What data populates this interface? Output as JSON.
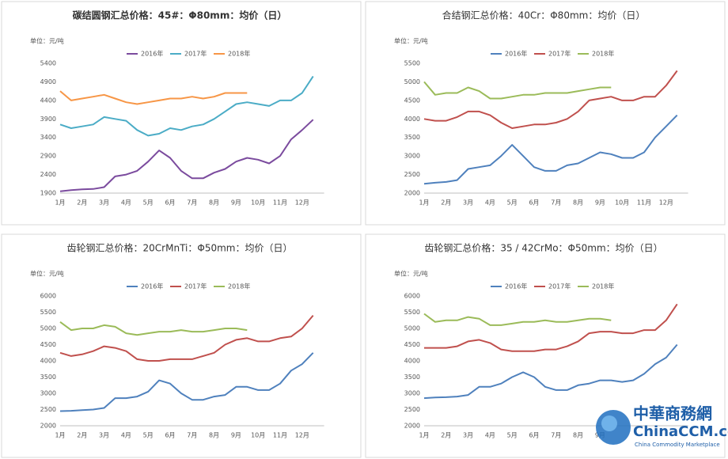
{
  "chart_data": [
    {
      "type": "line",
      "title": "碳结圆钢汇总价格：45#：Φ80mm：均价（日）",
      "unit": "单位：元/吨",
      "categories": [
        "1月",
        null,
        "2月",
        null,
        "3月",
        null,
        "4月",
        null,
        "5月",
        null,
        "6月",
        null,
        "7月",
        null,
        "8月",
        null,
        "9月",
        null,
        "10月",
        null,
        "11月",
        null,
        "12月",
        null
      ],
      "ylim": [
        1900,
        5400
      ],
      "yticks": [
        1900,
        2400,
        2900,
        3400,
        3900,
        4400,
        4900,
        5400
      ],
      "grid": false,
      "series": [
        {
          "name": "2016年",
          "color": "#7b4b9e",
          "values": [
            1950,
            1980,
            2000,
            2010,
            2060,
            2350,
            2400,
            2500,
            2750,
            3050,
            2850,
            2500,
            2300,
            2300,
            2450,
            2550,
            2750,
            2850,
            2800,
            2700,
            2900,
            3350,
            3600,
            3880
          ]
        },
        {
          "name": "2017年",
          "color": "#4bacc6",
          "values": [
            3750,
            3650,
            3700,
            3750,
            3950,
            3900,
            3850,
            3600,
            3450,
            3500,
            3650,
            3600,
            3700,
            3750,
            3900,
            4100,
            4300,
            4350,
            4300,
            4250,
            4400,
            4400,
            4600,
            5050
          ]
        },
        {
          "name": "2018年",
          "color": "#f79646",
          "values": [
            4650,
            4400,
            4450,
            4500,
            4550,
            4450,
            4350,
            4300,
            4350,
            4400,
            4450,
            4450,
            4500,
            4450,
            4500,
            4600,
            4600,
            4600,
            null,
            null,
            null,
            null,
            null,
            null
          ]
        }
      ]
    },
    {
      "type": "line",
      "title": "合结钢汇总价格：40Cr：Φ80mm：均价（日）",
      "unit": "单位：元/吨",
      "categories": [
        "1月",
        null,
        "2月",
        null,
        "3月",
        null,
        "4月",
        null,
        "5月",
        null,
        "6月",
        null,
        "7月",
        null,
        "8月",
        null,
        "9月",
        null,
        "10月",
        null,
        "11月",
        null,
        "12月",
        null
      ],
      "ylim": [
        2000,
        5500
      ],
      "yticks": [
        2000,
        2500,
        3000,
        3500,
        4000,
        4500,
        5000,
        5500
      ],
      "grid": false,
      "series": [
        {
          "name": "2016年",
          "color": "#4f81bd",
          "values": [
            2250,
            2280,
            2300,
            2350,
            2650,
            2700,
            2750,
            3000,
            3300,
            3000,
            2700,
            2600,
            2600,
            2750,
            2800,
            2950,
            3100,
            3050,
            2950,
            2950,
            3100,
            3500,
            3800,
            4100
          ]
        },
        {
          "name": "2017年",
          "color": "#c0504d",
          "values": [
            4000,
            3950,
            3950,
            4050,
            4200,
            4200,
            4100,
            3900,
            3750,
            3800,
            3850,
            3850,
            3900,
            4000,
            4200,
            4500,
            4550,
            4600,
            4500,
            4500,
            4600,
            4600,
            4900,
            5300
          ]
        },
        {
          "name": "2018年",
          "color": "#9bbb59",
          "values": [
            5000,
            4650,
            4700,
            4700,
            4850,
            4750,
            4550,
            4550,
            4600,
            4650,
            4650,
            4700,
            4700,
            4700,
            4750,
            4800,
            4850,
            4850,
            null,
            null,
            null,
            null,
            null,
            null
          ]
        }
      ]
    },
    {
      "type": "line",
      "title": "齿轮钢汇总价格：20CrMnTi：Φ50mm：均价（日）",
      "unit": "单位：元/吨",
      "categories": [
        "1月",
        null,
        "2月",
        null,
        "3月",
        null,
        "4月",
        null,
        "5月",
        null,
        "6月",
        null,
        "7月",
        null,
        "8月",
        null,
        "9月",
        null,
        "10月",
        null,
        "11月",
        null,
        "12月",
        null
      ],
      "ylim": [
        2000,
        6000
      ],
      "yticks": [
        2000,
        2500,
        3000,
        3500,
        4000,
        4500,
        5000,
        5500,
        6000
      ],
      "grid": false,
      "series": [
        {
          "name": "2016年",
          "color": "#4f81bd",
          "values": [
            2450,
            2460,
            2480,
            2500,
            2550,
            2850,
            2850,
            2900,
            3050,
            3400,
            3300,
            3000,
            2800,
            2800,
            2900,
            2950,
            3200,
            3200,
            3100,
            3100,
            3300,
            3700,
            3900,
            4250
          ]
        },
        {
          "name": "2017年",
          "color": "#c0504d",
          "values": [
            4250,
            4150,
            4200,
            4300,
            4450,
            4400,
            4300,
            4050,
            4000,
            4000,
            4050,
            4050,
            4050,
            4150,
            4250,
            4500,
            4650,
            4700,
            4600,
            4600,
            4700,
            4750,
            5000,
            5400
          ]
        },
        {
          "name": "2018年",
          "color": "#9bbb59",
          "values": [
            5200,
            4950,
            5000,
            5000,
            5100,
            5050,
            4850,
            4800,
            4850,
            4900,
            4900,
            4950,
            4900,
            4900,
            4950,
            5000,
            5000,
            4950,
            null,
            null,
            null,
            null,
            null,
            null
          ]
        }
      ]
    },
    {
      "type": "line",
      "title": "齿轮钢汇总价格：35 / 42CrMo：Φ50mm：均价（日）",
      "unit": "单位：元/吨",
      "categories": [
        "1月",
        null,
        "2月",
        null,
        "3月",
        null,
        "4月",
        null,
        "5月",
        null,
        "6月",
        null,
        "7月",
        null,
        "8月",
        null,
        "9月",
        null,
        null,
        null,
        null,
        null,
        null,
        null
      ],
      "ylim": [
        2000,
        6000
      ],
      "yticks": [
        2000,
        2500,
        3000,
        3500,
        4000,
        4500,
        5000,
        5500,
        6000
      ],
      "grid": false,
      "series": [
        {
          "name": "2016年",
          "color": "#4f81bd",
          "values": [
            2850,
            2870,
            2880,
            2900,
            2950,
            3200,
            3200,
            3300,
            3500,
            3650,
            3500,
            3200,
            3100,
            3100,
            3250,
            3300,
            3400,
            3400,
            3350,
            3400,
            3600,
            3900,
            4100,
            4500
          ]
        },
        {
          "name": "2017年",
          "color": "#c0504d",
          "values": [
            4400,
            4400,
            4400,
            4450,
            4600,
            4650,
            4550,
            4350,
            4300,
            4300,
            4300,
            4350,
            4350,
            4450,
            4600,
            4850,
            4900,
            4900,
            4850,
            4850,
            4950,
            4950,
            5250,
            5750
          ]
        },
        {
          "name": "2018年",
          "color": "#9bbb59",
          "values": [
            5450,
            5200,
            5250,
            5250,
            5350,
            5300,
            5100,
            5100,
            5150,
            5200,
            5200,
            5250,
            5200,
            5200,
            5250,
            5300,
            5300,
            5250,
            null,
            null,
            null,
            null,
            null,
            null
          ]
        }
      ]
    }
  ],
  "logo": {
    "name": "中華商務網",
    "site": "ChinaCCM.com",
    "tagline": "China Commodity Marketplace"
  }
}
